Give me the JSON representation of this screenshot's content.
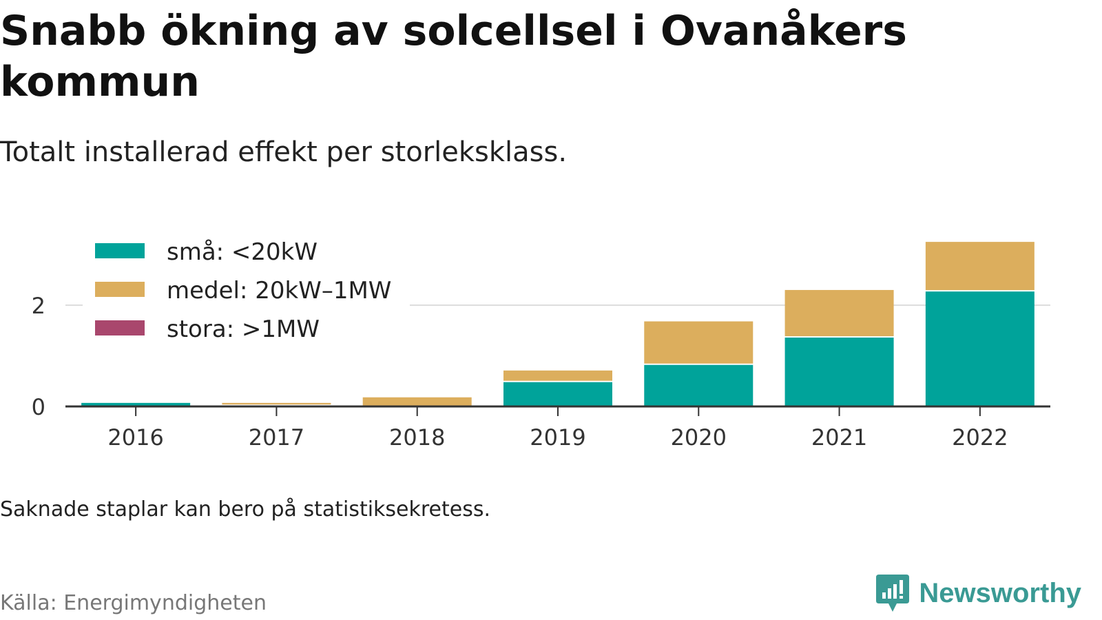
{
  "header": {
    "title": "Snabb ökning av solcellsel i Ovanåkers kommun",
    "subtitle": "Totalt installerad effekt per storleksklass."
  },
  "footer": {
    "note": "Saknade staplar kan bero på statistiksekretess.",
    "source": "Källa: Energimyndigheten",
    "brand": "Newsworthy"
  },
  "colors": {
    "sma": "#00a39a",
    "medel": "#dcae5d",
    "stora": "#a9476d",
    "brand": "#3a9a94"
  },
  "chart_data": {
    "type": "bar",
    "stacked": true,
    "categories": [
      "2016",
      "2017",
      "2018",
      "2019",
      "2020",
      "2021",
      "2022"
    ],
    "series": [
      {
        "name": "små: <20kW",
        "color": "#00a39a",
        "values": [
          0.07,
          0.01,
          0.0,
          0.48,
          0.82,
          1.36,
          2.27
        ]
      },
      {
        "name": "medel: 20kW–1MW",
        "color": "#dcae5d",
        "values": [
          0.0,
          0.06,
          0.18,
          0.23,
          0.86,
          0.94,
          0.98
        ]
      },
      {
        "name": "stora: >1MW",
        "color": "#a9476d",
        "values": [
          0,
          0,
          0,
          0,
          0,
          0,
          0
        ]
      }
    ],
    "yticks": [
      0,
      2
    ],
    "ylim": [
      0,
      3.3
    ],
    "grid": true,
    "legend": "top-left"
  }
}
